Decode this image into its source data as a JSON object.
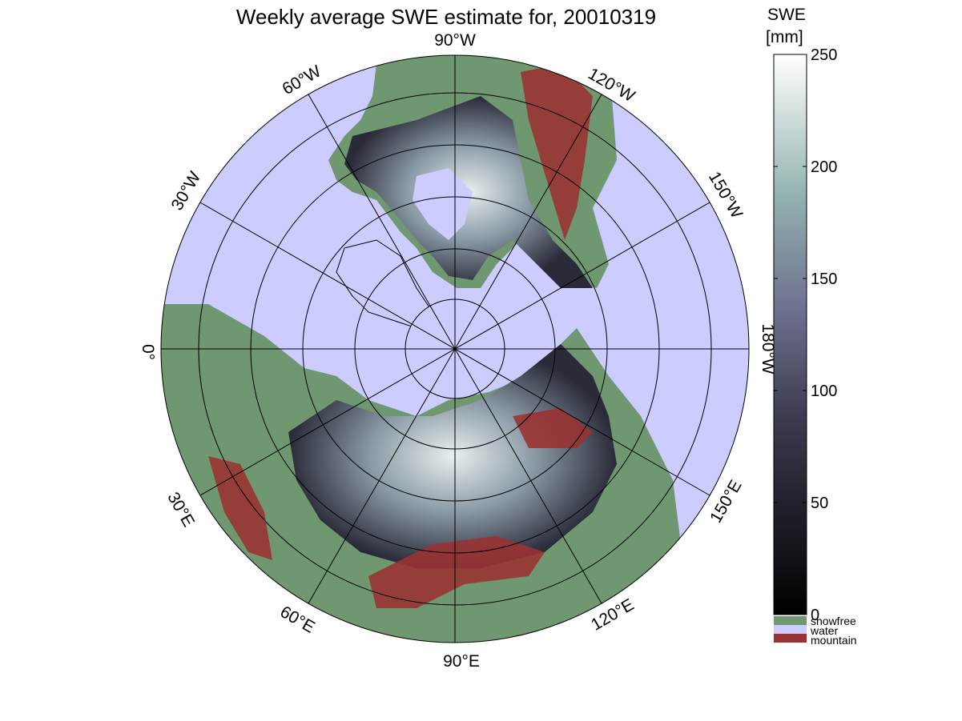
{
  "title": "Weekly average SWE estimate for, 20010319",
  "longitude_labels": [
    {
      "text": "90°W",
      "lon": "90W"
    },
    {
      "text": "120°W",
      "lon": "120W"
    },
    {
      "text": "150°W",
      "lon": "150W"
    },
    {
      "text": "180°W",
      "lon": "180W"
    },
    {
      "text": "150°E",
      "lon": "150E"
    },
    {
      "text": "120°E",
      "lon": "120E"
    },
    {
      "text": "90°E",
      "lon": "90E"
    },
    {
      "text": "60°E",
      "lon": "60E"
    },
    {
      "text": "30°E",
      "lon": "30E"
    },
    {
      "text": "0°",
      "lon": "0"
    },
    {
      "text": "30°W",
      "lon": "30W"
    },
    {
      "text": "60°W",
      "lon": "60W"
    }
  ],
  "colorbar": {
    "title_line1": "SWE",
    "title_line2": "[mm]",
    "ticks": [
      "0",
      "50",
      "100",
      "150",
      "200",
      "250"
    ],
    "range": [
      0,
      250
    ],
    "colors": {
      "low": "#000000",
      "mid": "#595a78",
      "high": "#ffffff"
    }
  },
  "legend": {
    "items": [
      {
        "label": "snowfree",
        "color": "#6f9870"
      },
      {
        "label": "water",
        "color": "#ccccff"
      },
      {
        "label": "mountain",
        "color": "#993333"
      }
    ]
  }
}
